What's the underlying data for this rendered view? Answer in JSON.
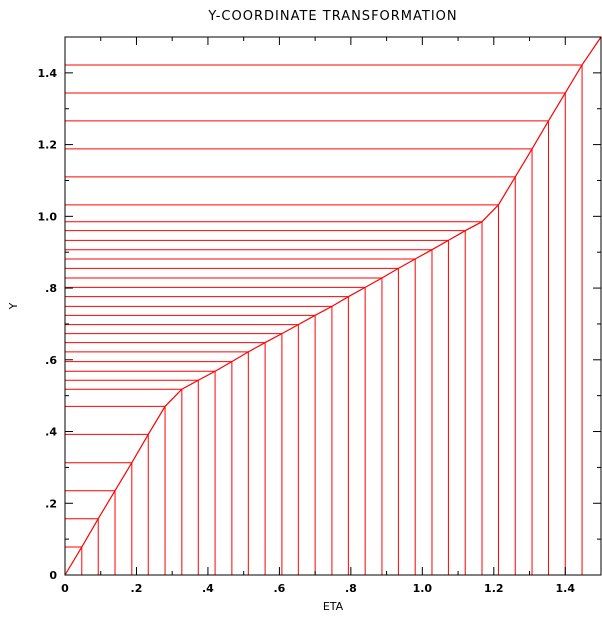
{
  "chart_data": {
    "type": "line",
    "title": "Y-COORDINATE TRANSFORMATION",
    "xlabel": "ETA",
    "ylabel": "Y",
    "xlim": [
      0,
      1.5
    ],
    "ylim": [
      0,
      1.5
    ],
    "x_ticks": [
      {
        "value": 0,
        "label": "0"
      },
      {
        "value": 0.2,
        "label": ".2"
      },
      {
        "value": 0.4,
        "label": ".4"
      },
      {
        "value": 0.6,
        "label": ".6"
      },
      {
        "value": 0.8,
        "label": ".8"
      },
      {
        "value": 1.0,
        "label": "1.0"
      },
      {
        "value": 1.2,
        "label": "1.2"
      },
      {
        "value": 1.4,
        "label": "1.4"
      }
    ],
    "y_ticks": [
      {
        "value": 0,
        "label": "0"
      },
      {
        "value": 0.2,
        "label": ".2"
      },
      {
        "value": 0.4,
        "label": ".4"
      },
      {
        "value": 0.6,
        "label": ".6"
      },
      {
        "value": 0.8,
        "label": ".8"
      },
      {
        "value": 1.0,
        "label": "1.0"
      },
      {
        "value": 1.2,
        "label": "1.2"
      },
      {
        "value": 1.4,
        "label": "1.4"
      }
    ],
    "x_minor_step": 0.1,
    "y_minor_step": 0.1,
    "line_color": "#ff0000",
    "drop_lines": true,
    "series": [
      {
        "eta": [
          0,
          0.047,
          0.093,
          0.14,
          0.187,
          0.233,
          0.28,
          0.327,
          0.373,
          0.42,
          0.467,
          0.513,
          0.56,
          0.607,
          0.653,
          0.7,
          0.747,
          0.793,
          0.84,
          0.887,
          0.933,
          0.98,
          1.027,
          1.073,
          1.12,
          1.167,
          1.213,
          1.26,
          1.307,
          1.353,
          1.4,
          1.447,
          1.5
        ],
        "y": [
          0,
          0.078,
          0.157,
          0.235,
          0.313,
          0.392,
          0.47,
          0.518,
          0.543,
          0.568,
          0.595,
          0.622,
          0.648,
          0.673,
          0.698,
          0.724,
          0.749,
          0.776,
          0.802,
          0.828,
          0.855,
          0.881,
          0.907,
          0.933,
          0.96,
          0.985,
          1.032,
          1.11,
          1.188,
          1.266,
          1.344,
          1.422,
          1.5
        ]
      }
    ]
  }
}
